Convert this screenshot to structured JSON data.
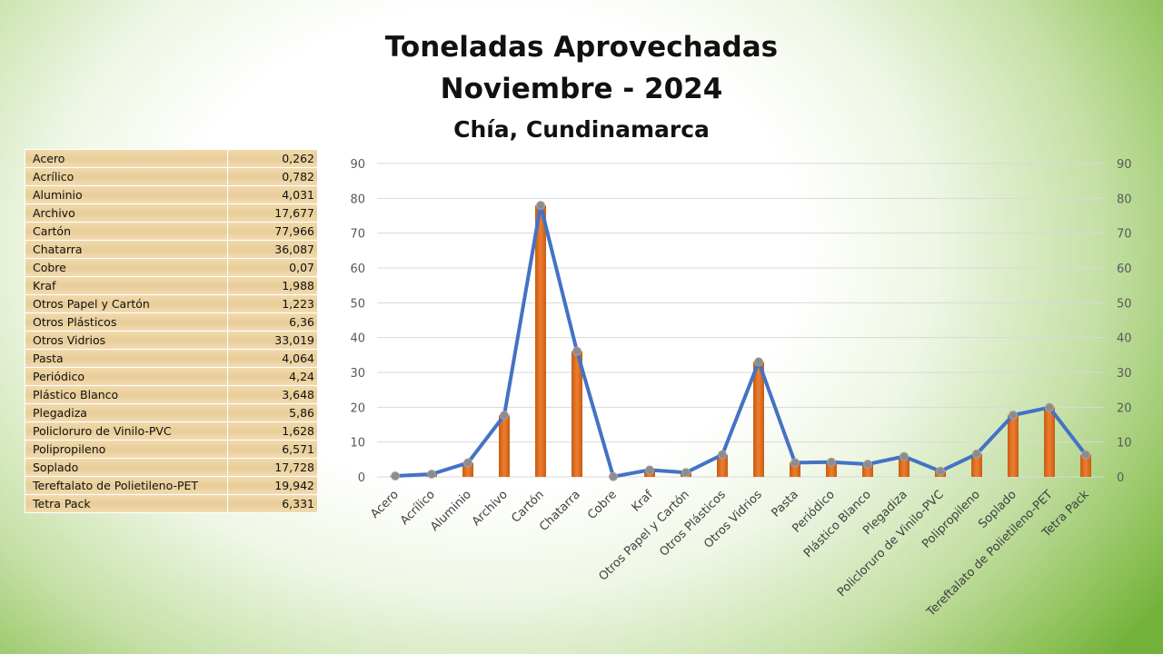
{
  "titles": {
    "line1": "Toneladas Aprovechadas",
    "line2": "Noviembre - 2024",
    "line3": "Chía, Cundinamarca"
  },
  "table": {
    "rows": [
      {
        "label": "Acero",
        "value": "0,262"
      },
      {
        "label": "Acrílico",
        "value": "0,782"
      },
      {
        "label": "Aluminio",
        "value": "4,031"
      },
      {
        "label": "Archivo",
        "value": "17,677"
      },
      {
        "label": "Cartón",
        "value": "77,966"
      },
      {
        "label": "Chatarra",
        "value": "36,087"
      },
      {
        "label": "Cobre",
        "value": "0,07"
      },
      {
        "label": "Kraf",
        "value": "1,988"
      },
      {
        "label": "Otros Papel y Cartón",
        "value": "1,223"
      },
      {
        "label": "Otros Plásticos",
        "value": "6,36"
      },
      {
        "label": "Otros Vidrios",
        "value": "33,019"
      },
      {
        "label": "Pasta",
        "value": "4,064"
      },
      {
        "label": "Periódico",
        "value": "4,24"
      },
      {
        "label": "Plástico Blanco",
        "value": "3,648"
      },
      {
        "label": "Plegadiza",
        "value": "5,86"
      },
      {
        "label": "Policloruro de Vinilo-PVC",
        "value": "1,628"
      },
      {
        "label": "Polipropileno",
        "value": "6,571"
      },
      {
        "label": "Soplado",
        "value": "17,728"
      },
      {
        "label": "Tereftalato de Polietileno-PET",
        "value": "19,942"
      },
      {
        "label": "Tetra Pack",
        "value": "6,331"
      }
    ]
  },
  "chart_data": {
    "type": "bar",
    "combo": "bar+line",
    "categories": [
      "Acero",
      "Acrílico",
      "Aluminio",
      "Archivo",
      "Cartón",
      "Chatarra",
      "Cobre",
      "Kraf",
      "Otros Papel y Cartón",
      "Otros Plásticos",
      "Otros Vidrios",
      "Pasta",
      "Periódico",
      "Plástico Blanco",
      "Plegadiza",
      "Policloruro de Vinilo-PVC",
      "Polipropileno",
      "Soplado",
      "Tereftalato de Polietileno-PET",
      "Tetra Pack"
    ],
    "series": [
      {
        "type": "bar",
        "values": [
          0.262,
          0.782,
          4.031,
          17.677,
          77.966,
          36.087,
          0.07,
          1.988,
          1.223,
          6.36,
          33.019,
          4.064,
          4.24,
          3.648,
          5.86,
          1.628,
          6.571,
          17.728,
          19.942,
          6.331
        ]
      },
      {
        "type": "line",
        "values": [
          0.262,
          0.782,
          4.031,
          17.677,
          77.966,
          36.087,
          0.07,
          1.988,
          1.223,
          6.36,
          33.019,
          4.064,
          4.24,
          3.648,
          5.86,
          1.628,
          6.571,
          17.728,
          19.942,
          6.331
        ]
      }
    ],
    "ylim": [
      0,
      90
    ],
    "yticks": [
      0,
      10,
      20,
      30,
      40,
      50,
      60,
      70,
      80,
      90
    ],
    "secondary_ylim": [
      0,
      90
    ],
    "grid": true,
    "colors": {
      "bar": "#ed7d31",
      "line": "#4472c4",
      "marker": "#8c8c8c",
      "grid": "#d9d9d9"
    }
  }
}
